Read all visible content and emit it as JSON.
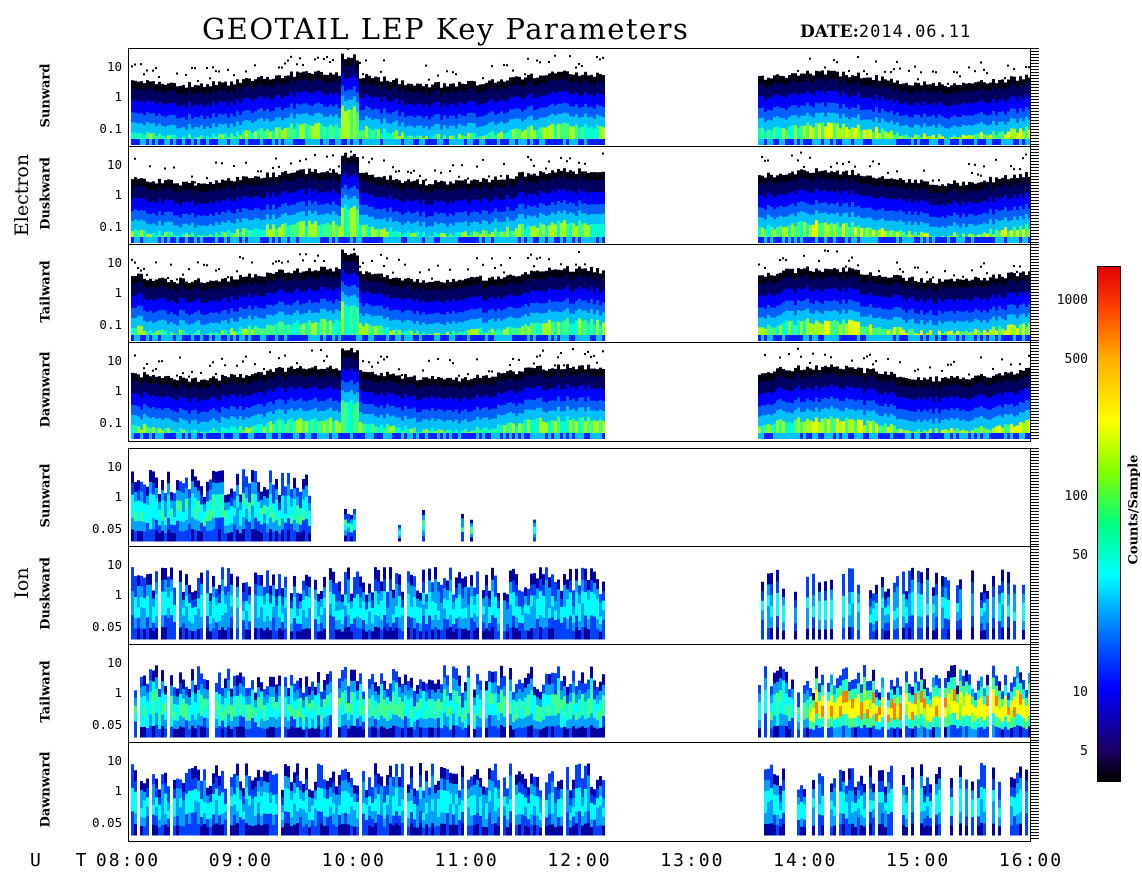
{
  "chart_data": {
    "type": "heatmap",
    "title": "GEOTAIL LEP Key Parameters",
    "date_label": "DATE:",
    "date_value": "2014.06.11",
    "x_axis_label": "U T",
    "x_ticks": [
      "08:00",
      "09:00",
      "10:00",
      "11:00",
      "12:00",
      "13:00",
      "14:00",
      "15:00",
      "16:00"
    ],
    "x_range_hours": [
      8,
      16
    ],
    "data_gap_hours": [
      12.2,
      13.55
    ],
    "groups": [
      {
        "name": "Electron",
        "panels": [
          {
            "label": "Sunward",
            "y_ticks": [
              "10",
              "1",
              "0.1"
            ]
          },
          {
            "label": "Duskward",
            "y_ticks": [
              "10",
              "1",
              "0.1"
            ]
          },
          {
            "label": "Tailward",
            "y_ticks": [
              "10",
              "1",
              "0.1"
            ]
          },
          {
            "label": "Dawnward",
            "y_ticks": [
              "10",
              "1",
              "0.1"
            ]
          }
        ]
      },
      {
        "name": "Ion",
        "panels": [
          {
            "label": "Sunward",
            "y_ticks": [
              "10",
              "1",
              "0.05"
            ]
          },
          {
            "label": "Duskward",
            "y_ticks": [
              "10",
              "1",
              "0.05"
            ]
          },
          {
            "label": "Tailward",
            "y_ticks": [
              "10",
              "1",
              "0.05"
            ]
          },
          {
            "label": "Dawnward",
            "y_ticks": [
              "10",
              "1",
              "0.05"
            ]
          }
        ]
      }
    ],
    "y_scale": "log",
    "colorbar": {
      "label": "Counts/Sample",
      "scale": "log",
      "ticks": [
        1000,
        500,
        100,
        50,
        10,
        5
      ],
      "tick_labels": [
        "1000",
        "500",
        "100",
        "50",
        "10",
        "5"
      ],
      "colors": [
        "#000000",
        "#0000ff",
        "#00ffff",
        "#00ff80",
        "#ffff00",
        "#ff4000",
        "#e00000"
      ]
    }
  }
}
